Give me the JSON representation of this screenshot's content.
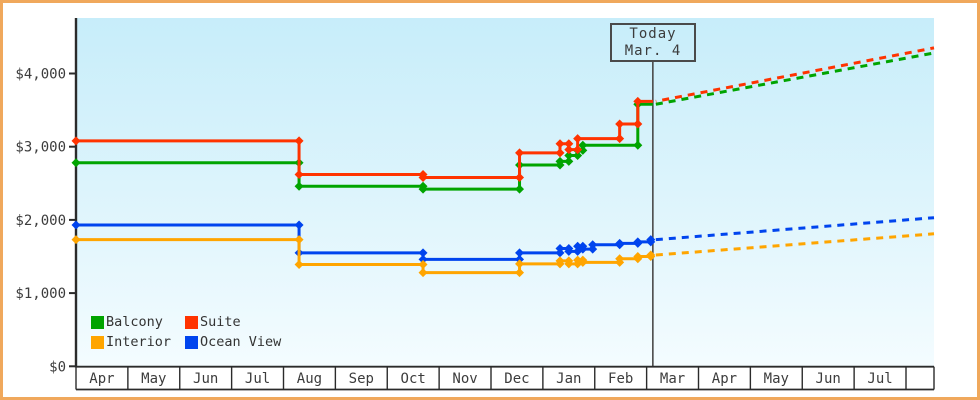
{
  "colors": {
    "frame_border": "#F0A85C",
    "plot_bg_top": "#C7EDFA",
    "plot_bg_bottom": "#F4FCFF",
    "axis": "#2b2b2b",
    "text": "#3c3c3c",
    "today_line": "#4a4a4a"
  },
  "today_marker": {
    "line1": "Today",
    "line2": "Mar. 4"
  },
  "y_axis": {
    "ticks": [
      {
        "label": "$0",
        "value": 0
      },
      {
        "label": "$1,000",
        "value": 1000
      },
      {
        "label": "$2,000",
        "value": 2000
      },
      {
        "label": "$3,000",
        "value": 3000
      },
      {
        "label": "$4,000",
        "value": 4000
      }
    ]
  },
  "x_axis": {
    "months": [
      "Apr",
      "May",
      "Jun",
      "Jul",
      "Aug",
      "Sep",
      "Oct",
      "Nov",
      "Dec",
      "Jan",
      "Feb",
      "Mar",
      "Apr",
      "May",
      "Jun",
      "Jul"
    ]
  },
  "legend": {
    "items": [
      {
        "label": "Balcony",
        "color": "#00A400"
      },
      {
        "label": "Suite",
        "color": "#FF3300"
      },
      {
        "label": "Interior",
        "color": "#FFA500"
      },
      {
        "label": "Ocean View",
        "color": "#0044EE"
      }
    ]
  },
  "chart_data": {
    "type": "line",
    "title": "",
    "x_unit": "months from Apr 1",
    "ylim": [
      0,
      4760
    ],
    "grid": false,
    "today": {
      "label": "Today",
      "date": "Mar. 4",
      "m": 11.12
    },
    "projection_end_m": 16.54,
    "series": [
      {
        "name": "Balcony",
        "color": "#00A400",
        "points": [
          {
            "date": "Apr 1",
            "m": 0,
            "value": 2780
          },
          {
            "date": "Aug 9",
            "m": 4.3,
            "value": 2460
          },
          {
            "date": "Oct 21",
            "m": 6.69,
            "value": 2420
          },
          {
            "date": "Dec 17",
            "m": 8.55,
            "value": 2750
          },
          {
            "date": "Jan 10",
            "m": 9.33,
            "value": 2800
          },
          {
            "date": "Jan 16",
            "m": 9.5,
            "value": 2880
          },
          {
            "date": "Jan 21",
            "m": 9.67,
            "value": 2950
          },
          {
            "date": "Jan 24",
            "m": 9.77,
            "value": 3020
          },
          {
            "date": "Feb 24",
            "m": 10.83,
            "value": 3580
          }
        ],
        "projection_end_value": 4280
      },
      {
        "name": "Suite",
        "color": "#FF3300",
        "points": [
          {
            "date": "Apr 1",
            "m": 0,
            "value": 3080
          },
          {
            "date": "Aug 9",
            "m": 4.3,
            "value": 2620
          },
          {
            "date": "Oct 21",
            "m": 6.69,
            "value": 2580
          },
          {
            "date": "Dec 17",
            "m": 8.55,
            "value": 2915
          },
          {
            "date": "Jan 10",
            "m": 9.33,
            "value": 3040
          },
          {
            "date": "Jan 16",
            "m": 9.5,
            "value": 2960
          },
          {
            "date": "Jan 21",
            "m": 9.67,
            "value": 3110
          },
          {
            "date": "Feb 14",
            "m": 10.48,
            "value": 3310
          },
          {
            "date": "Feb 24",
            "m": 10.83,
            "value": 3620
          }
        ],
        "projection_end_value": 4350
      },
      {
        "name": "Ocean View",
        "color": "#0044EE",
        "points": [
          {
            "date": "Apr 1",
            "m": 0,
            "value": 1930
          },
          {
            "date": "Aug 9",
            "m": 4.3,
            "value": 1550
          },
          {
            "date": "Oct 21",
            "m": 6.69,
            "value": 1460
          },
          {
            "date": "Dec 17",
            "m": 8.55,
            "value": 1550
          },
          {
            "date": "Jan 10",
            "m": 9.33,
            "value": 1610
          },
          {
            "date": "Jan 16",
            "m": 9.5,
            "value": 1570
          },
          {
            "date": "Jan 21",
            "m": 9.67,
            "value": 1640
          },
          {
            "date": "Jan 24",
            "m": 9.77,
            "value": 1600
          },
          {
            "date": "Jan 30",
            "m": 9.96,
            "value": 1660
          },
          {
            "date": "Feb 14",
            "m": 10.48,
            "value": 1680
          },
          {
            "date": "Feb 24",
            "m": 10.83,
            "value": 1700
          },
          {
            "date": "Mar 3",
            "m": 11.08,
            "value": 1730
          }
        ],
        "projection_end_value": 2030
      },
      {
        "name": "Interior",
        "color": "#FFA500",
        "points": [
          {
            "date": "Apr 1",
            "m": 0,
            "value": 1730
          },
          {
            "date": "Aug 9",
            "m": 4.3,
            "value": 1390
          },
          {
            "date": "Oct 21",
            "m": 6.69,
            "value": 1280
          },
          {
            "date": "Dec 17",
            "m": 8.55,
            "value": 1400
          },
          {
            "date": "Jan 10",
            "m": 9.33,
            "value": 1440
          },
          {
            "date": "Jan 16",
            "m": 9.5,
            "value": 1400
          },
          {
            "date": "Jan 21",
            "m": 9.67,
            "value": 1450
          },
          {
            "date": "Jan 24",
            "m": 9.77,
            "value": 1420
          },
          {
            "date": "Feb 14",
            "m": 10.48,
            "value": 1470
          },
          {
            "date": "Feb 24",
            "m": 10.83,
            "value": 1500
          },
          {
            "date": "Mar 3",
            "m": 11.08,
            "value": 1520
          }
        ],
        "projection_end_value": 1810
      }
    ]
  }
}
